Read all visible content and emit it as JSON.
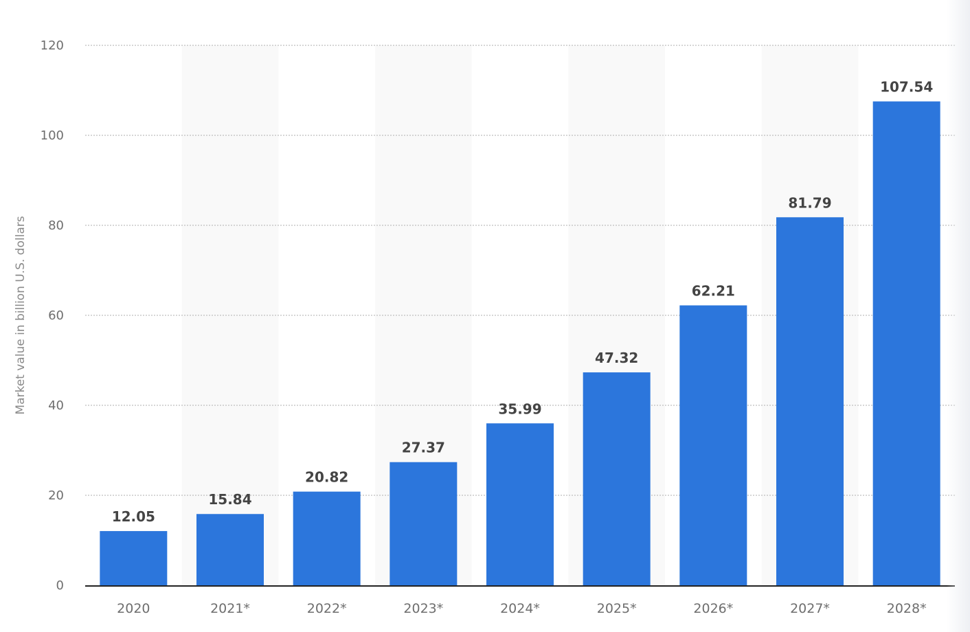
{
  "chart_data": {
    "type": "bar",
    "title": "",
    "xlabel": "",
    "ylabel": "Market value in billion U.S. dollars",
    "categories": [
      "2020",
      "2021*",
      "2022*",
      "2023*",
      "2024*",
      "2025*",
      "2026*",
      "2027*",
      "2028*"
    ],
    "values": [
      12.05,
      15.84,
      20.82,
      27.37,
      35.99,
      47.32,
      62.21,
      81.79,
      107.54
    ],
    "value_labels": [
      "12.05",
      "15.84",
      "20.82",
      "27.37",
      "35.99",
      "47.32",
      "62.21",
      "81.79",
      "107.54"
    ],
    "ylim": [
      0,
      120
    ],
    "yticks": [
      0,
      20,
      40,
      60,
      80,
      100,
      120
    ],
    "grid": true,
    "legend": null,
    "colors": {
      "bar": "#2c76dc",
      "band": "#f9f9f9",
      "grid": "#c8c8c8",
      "axis": "#222222",
      "tick_label": "#6e6e6e",
      "value_label": "#444444"
    }
  }
}
